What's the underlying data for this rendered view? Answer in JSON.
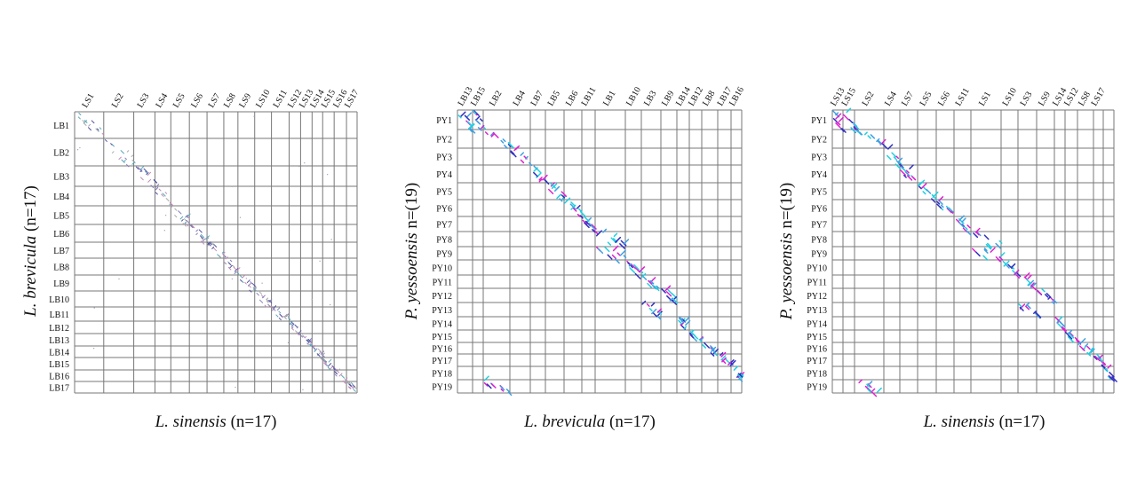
{
  "chart_data": [
    {
      "type": "scatter",
      "subtype": "dot-plot",
      "x_species": "L. sinensis",
      "x_count": "(n=17)",
      "y_species": "L. brevicula",
      "y_count": "(n=17)",
      "columns": [
        "LS1",
        "LS2",
        "LS3",
        "LS4",
        "LS5",
        "LS6",
        "LS7",
        "LS8",
        "LS9",
        "LS10",
        "LS11",
        "LS12",
        "LS13",
        "LS14",
        "LS15",
        "LS16",
        "LS17"
      ],
      "column_sizes": [
        33,
        34,
        24,
        18,
        21,
        20,
        19,
        16,
        19,
        19,
        20,
        13,
        13,
        12,
        13,
        14,
        12
      ],
      "rows": [
        "LB1",
        "LB2",
        "LB3",
        "LB4",
        "LB5",
        "LB6",
        "LB7",
        "LB8",
        "LB9",
        "LB10",
        "LB11",
        "LB12",
        "LB13",
        "LB14",
        "LB15",
        "LB16",
        "LB17"
      ],
      "row_sizes": [
        30,
        31,
        23,
        22,
        21,
        20,
        18,
        19,
        18,
        18,
        16,
        14,
        14,
        13,
        14,
        13,
        13
      ],
      "hits": [
        [
          0,
          0
        ],
        [
          1,
          1
        ],
        [
          2,
          2
        ],
        [
          3,
          3
        ],
        [
          4,
          4
        ],
        [
          5,
          5
        ],
        [
          6,
          6
        ],
        [
          7,
          7
        ],
        [
          8,
          8
        ],
        [
          9,
          9
        ],
        [
          10,
          10
        ],
        [
          11,
          11
        ],
        [
          12,
          12
        ],
        [
          13,
          13
        ],
        [
          14,
          14
        ],
        [
          15,
          15
        ],
        [
          16,
          16
        ]
      ],
      "colors": [
        "#8a7fb8",
        "#5aa8b8",
        "#c28ab8",
        "#5050a0",
        "#aaaaaa"
      ]
    },
    {
      "type": "scatter",
      "subtype": "dot-plot",
      "x_species": "L. brevicula",
      "x_count": "(n=17)",
      "y_species": "P. yessoensis",
      "y_count": "n=(19)",
      "columns": [
        "LB13",
        "LB15",
        "LB2",
        "LB4",
        "LB7",
        "LB5",
        "LB6",
        "LB11",
        "LB1",
        "LB10",
        "LB3",
        "LB9",
        "LB14",
        "LB12",
        "LB8",
        "LB17",
        "LB16"
      ],
      "column_sizes": [
        17,
        12,
        30,
        23,
        17,
        21,
        20,
        15,
        34,
        18,
        22,
        18,
        14,
        14,
        18,
        15,
        12
      ],
      "rows": [
        "PY1",
        "PY2",
        "PY3",
        "PY4",
        "PY5",
        "PY6",
        "PY7",
        "PY8",
        "PY9",
        "PY10",
        "PY11",
        "PY12",
        "PY13",
        "PY14",
        "PY15",
        "PY16",
        "PY17",
        "PY18",
        "PY19"
      ],
      "row_sizes": [
        22,
        21,
        19,
        20,
        19,
        19,
        17,
        17,
        15,
        17,
        15,
        16,
        16,
        15,
        14,
        13,
        14,
        15,
        15
      ],
      "hits": [
        [
          0,
          0
        ],
        [
          0,
          1
        ],
        [
          1,
          2
        ],
        [
          2,
          3
        ],
        [
          3,
          4
        ],
        [
          4,
          5
        ],
        [
          5,
          6
        ],
        [
          6,
          7
        ],
        [
          7,
          8
        ],
        [
          8,
          8
        ],
        [
          9,
          9
        ],
        [
          10,
          10
        ],
        [
          11,
          11
        ],
        [
          12,
          10
        ],
        [
          13,
          12
        ],
        [
          14,
          13
        ],
        [
          15,
          14
        ],
        [
          16,
          15
        ],
        [
          17,
          16
        ],
        [
          18,
          2
        ]
      ],
      "colors": [
        "#e020d0",
        "#20d0e0",
        "#3030c0",
        "#40a0e0"
      ]
    },
    {
      "type": "scatter",
      "subtype": "dot-plot",
      "x_species": "L. sinensis",
      "x_count": "(n=17)",
      "y_species": "P. yessoensis",
      "y_count": "n=(19)",
      "columns": [
        "LS13",
        "LS15",
        "LS2",
        "LS4",
        "LS7",
        "LS5",
        "LS6",
        "LS11",
        "LS1",
        "LS10",
        "LS3",
        "LS9",
        "LS14",
        "LS12",
        "LS8",
        "LS17",
        ""
      ],
      "column_sizes": [
        12,
        13,
        33,
        18,
        20,
        21,
        20,
        19,
        34,
        19,
        21,
        20,
        12,
        14,
        18,
        11,
        12
      ],
      "rows": [
        "PY1",
        "PY2",
        "PY3",
        "PY4",
        "PY5",
        "PY6",
        "PY7",
        "PY8",
        "PY9",
        "PY10",
        "PY11",
        "PY12",
        "PY13",
        "PY14",
        "PY15",
        "PY16",
        "PY17",
        "PY18",
        "PY19"
      ],
      "row_sizes": [
        22,
        21,
        19,
        20,
        19,
        19,
        17,
        17,
        15,
        17,
        15,
        16,
        16,
        15,
        14,
        13,
        14,
        15,
        15
      ],
      "hits": [
        [
          0,
          0
        ],
        [
          0,
          1
        ],
        [
          1,
          2
        ],
        [
          2,
          3
        ],
        [
          3,
          4
        ],
        [
          4,
          5
        ],
        [
          5,
          6
        ],
        [
          6,
          7
        ],
        [
          7,
          8
        ],
        [
          8,
          8
        ],
        [
          9,
          9
        ],
        [
          10,
          10
        ],
        [
          11,
          11
        ],
        [
          12,
          10
        ],
        [
          13,
          12
        ],
        [
          14,
          13
        ],
        [
          15,
          14
        ],
        [
          16,
          15
        ],
        [
          17,
          16
        ],
        [
          18,
          2
        ]
      ],
      "colors": [
        "#e020d0",
        "#20d0e0",
        "#3030c0",
        "#40a0e0"
      ]
    }
  ]
}
